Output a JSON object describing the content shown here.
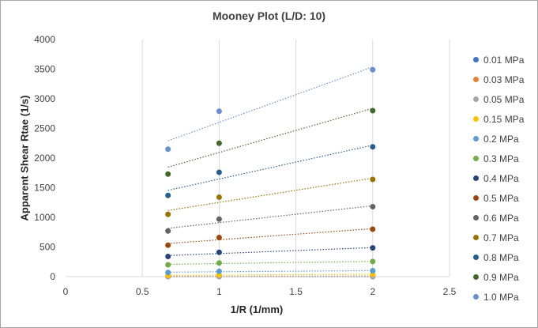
{
  "chart_data": {
    "type": "scatter",
    "title": "Mooney Plot (L/D: 10)",
    "xlabel": "1/R (1/mm)",
    "ylabel": "Apparent Shear Rtae (1/s)",
    "xlim": [
      0,
      2.5
    ],
    "ylim": [
      0,
      4000
    ],
    "xticks": [
      "0",
      "0.5",
      "1",
      "1.5",
      "2",
      "2.5"
    ],
    "yticks": [
      "0",
      "500",
      "1000",
      "1500",
      "2000",
      "2500",
      "3000",
      "3500",
      "4000"
    ],
    "grid": "vertical",
    "legend_position": "right",
    "trendline": "linear-dotted",
    "series": [
      {
        "name": "0.01 MPa",
        "color": "#4472c4",
        "x": [
          0.667,
          1,
          2
        ],
        "y": [
          0,
          1,
          2
        ]
      },
      {
        "name": "0.03 MPa",
        "color": "#ed7d31",
        "x": [
          0.667,
          1,
          2
        ],
        "y": [
          1,
          3,
          5
        ]
      },
      {
        "name": "0.05 MPa",
        "color": "#a5a5a5",
        "x": [
          0.667,
          1,
          2
        ],
        "y": [
          3,
          6,
          10
        ]
      },
      {
        "name": "0.15 MPa",
        "color": "#ffc000",
        "x": [
          0.667,
          1,
          2
        ],
        "y": [
          20,
          30,
          40
        ]
      },
      {
        "name": "0.2 MPa",
        "color": "#5b9bd5",
        "x": [
          0.667,
          1,
          2
        ],
        "y": [
          70,
          90,
          100
        ]
      },
      {
        "name": "0.3 MPa",
        "color": "#70ad47",
        "x": [
          0.667,
          1,
          2
        ],
        "y": [
          200,
          230,
          255
        ]
      },
      {
        "name": "0.4 MPa",
        "color": "#264478",
        "x": [
          0.667,
          1,
          2
        ],
        "y": [
          340,
          410,
          485
        ]
      },
      {
        "name": "0.5 MPa",
        "color": "#9e480e",
        "x": [
          0.667,
          1,
          2
        ],
        "y": [
          530,
          660,
          800
        ]
      },
      {
        "name": "0.6 MPa",
        "color": "#636363",
        "x": [
          0.667,
          1,
          2
        ],
        "y": [
          770,
          970,
          1180
        ]
      },
      {
        "name": "0.7 MPa",
        "color": "#997300",
        "x": [
          0.667,
          1,
          2
        ],
        "y": [
          1050,
          1340,
          1640
        ]
      },
      {
        "name": "0.8 MPa",
        "color": "#255e91",
        "x": [
          0.667,
          1,
          2
        ],
        "y": [
          1370,
          1760,
          2190
        ]
      },
      {
        "name": "0.9 MPa",
        "color": "#43682b",
        "x": [
          0.667,
          1,
          2
        ],
        "y": [
          1730,
          2250,
          2800
        ]
      },
      {
        "name": "1.0 MPa",
        "color": "#698ed0",
        "x": [
          0.667,
          1,
          2
        ],
        "y": [
          2150,
          2790,
          3490
        ]
      }
    ]
  }
}
